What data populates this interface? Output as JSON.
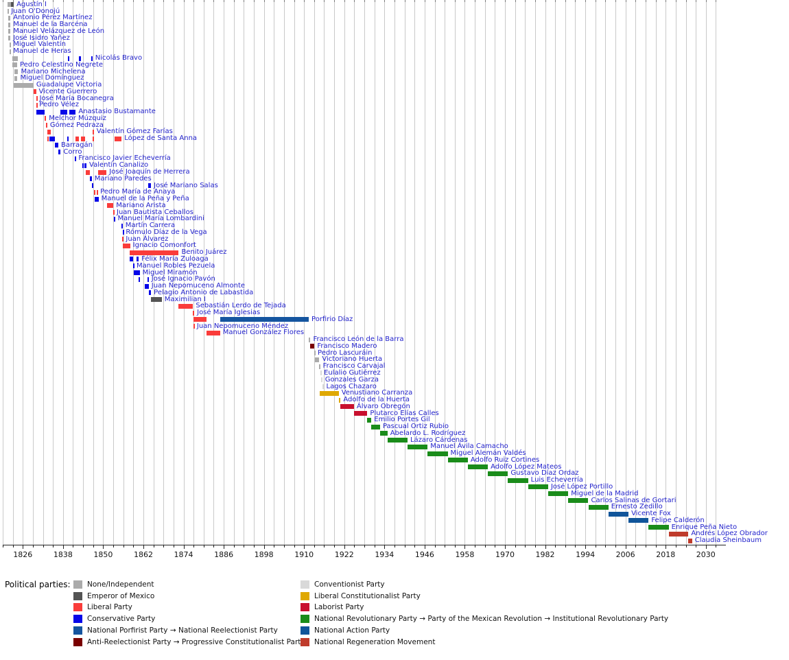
{
  "legend": {
    "title": "Political parties:",
    "columns": [
      [
        "none",
        "emperor",
        "liberal",
        "conservative",
        "porfirist",
        "antireelect"
      ],
      [
        "conventionist",
        "libconst",
        "laborist",
        "pri",
        "pan",
        "morena"
      ]
    ]
  },
  "chart_data": {
    "type": "timeline",
    "x_axis": {
      "range": [
        1820,
        2036
      ],
      "tick_labels": [
        1826,
        1838,
        1850,
        1862,
        1874,
        1886,
        1898,
        1910,
        1922,
        1934,
        1946,
        1958,
        1970,
        1982,
        1994,
        2006,
        2018,
        2030
      ],
      "gridline_interval_years": 3,
      "label_interval_years": 12,
      "grid": true
    },
    "parties": {
      "none": {
        "label": "None/Independent",
        "color": "#ababab"
      },
      "emperor": {
        "label": "Emperor of Mexico",
        "color": "#545454"
      },
      "liberal": {
        "label": "Liberal Party",
        "color": "#fa3c3a"
      },
      "conservative": {
        "label": "Conservative Party",
        "color": "#0707e8"
      },
      "porfirist": {
        "label": "National Porfirist Party → National Reelectionist Party",
        "color": "#15559f"
      },
      "antireelect": {
        "label": "Anti-Reelectionist Party → Progressive Constitutionalist Party",
        "color": "#7a0000"
      },
      "conventionist": {
        "label": "Conventionist Party",
        "color": "#d9d9d9"
      },
      "libconst": {
        "label": "Liberal Constitutionalist Party",
        "color": "#dfa801"
      },
      "laborist": {
        "label": "Laborist Party",
        "color": "#c8102e"
      },
      "pri": {
        "label": "National Revolutionary Party → Party of the Mexican Revolution → Institutional Revolutionary Party",
        "color": "#1a8c1a"
      },
      "pan": {
        "label": "National Action Party",
        "color": "#10559a"
      },
      "morena": {
        "label": "National Regeneration Movement",
        "color": "#bf3b2b"
      }
    },
    "presidents": [
      {
        "name": "Agustín I",
        "segments": [
          [
            1821.4,
            1822.4,
            "none"
          ],
          [
            1822.4,
            1823.3,
            "emperor"
          ]
        ]
      },
      {
        "name": "Juan O'Donojú",
        "segments": [
          [
            1821.4,
            1821.7,
            "none"
          ]
        ]
      },
      {
        "name": "Antonio Pérez Martínez",
        "segments": [
          [
            1821.7,
            1822.3,
            "none"
          ]
        ]
      },
      {
        "name": "Manuel de la Barcéna",
        "segments": [
          [
            1821.7,
            1822.3,
            "none"
          ]
        ]
      },
      {
        "name": "Manuel Velázquez de León",
        "segments": [
          [
            1821.7,
            1822.3,
            "none"
          ]
        ]
      },
      {
        "name": "José Isidro Yañez",
        "segments": [
          [
            1821.7,
            1822.3,
            "none"
          ]
        ]
      },
      {
        "name": "Miguel Valentín",
        "segments": [
          [
            1822.0,
            1822.3,
            "none"
          ]
        ]
      },
      {
        "name": "Manuel de Heras",
        "segments": [
          [
            1822.0,
            1822.3,
            "none"
          ]
        ]
      },
      {
        "name": "Nicolás Bravo",
        "segments": [
          [
            1822.8,
            1824.5,
            "none"
          ],
          [
            1839.5,
            1839.8,
            "conservative"
          ],
          [
            1842.8,
            1843.4,
            "conservative"
          ],
          [
            1846.5,
            1846.8,
            "conservative"
          ]
        ]
      },
      {
        "name": "Pedro Celestino Negrete",
        "segments": [
          [
            1822.8,
            1824.3,
            "none"
          ]
        ]
      },
      {
        "name": "Mariano Michelena",
        "segments": [
          [
            1823.5,
            1824.6,
            "none"
          ]
        ]
      },
      {
        "name": "Miguel Domínguez",
        "segments": [
          [
            1823.5,
            1824.4,
            "none"
          ]
        ]
      },
      {
        "name": "Guadalupe Victoria",
        "segments": [
          [
            1823.3,
            1829.2,
            "none"
          ]
        ]
      },
      {
        "name": "Vicente Guerrero",
        "segments": [
          [
            1829.3,
            1829.95,
            "liberal"
          ]
        ]
      },
      {
        "name": "José María Bocanegra",
        "segments": [
          [
            1829.95,
            1830.15,
            "liberal"
          ]
        ]
      },
      {
        "name": "Pedro Vélez",
        "segments": [
          [
            1829.95,
            1830.1,
            "liberal"
          ]
        ]
      },
      {
        "name": "Anastasio Bustamante",
        "segments": [
          [
            1830.0,
            1832.6,
            "conservative"
          ],
          [
            1837.3,
            1839.2,
            "conservative"
          ],
          [
            1839.8,
            1841.8,
            "conservative"
          ]
        ]
      },
      {
        "name": "Melchor Múzquiz",
        "segments": [
          [
            1832.6,
            1832.95,
            "liberal"
          ]
        ]
      },
      {
        "name": "Gómez Pedraza",
        "segments": [
          [
            1832.95,
            1833.3,
            "liberal"
          ]
        ]
      },
      {
        "name": "Valentín Gómez Farías",
        "segments": [
          [
            1833.3,
            1834.4,
            "liberal"
          ],
          [
            1846.9,
            1847.2,
            "liberal"
          ]
        ]
      },
      {
        "name": "López de Santa Anna",
        "segments": [
          [
            1833.3,
            1833.6,
            "liberal"
          ],
          [
            1834.0,
            1835.5,
            "conservative"
          ],
          [
            1839.2,
            1839.5,
            "conservative"
          ],
          [
            1841.8,
            1842.8,
            "liberal"
          ],
          [
            1843.4,
            1844.6,
            "liberal"
          ],
          [
            1846.9,
            1847.2,
            "liberal"
          ],
          [
            1853.3,
            1855.5,
            "liberal"
          ]
        ]
      },
      {
        "name": "Barragán",
        "segments": [
          [
            1835.6,
            1836.6,
            "conservative"
          ]
        ]
      },
      {
        "name": "Corro",
        "segments": [
          [
            1836.6,
            1837.3,
            "conservative"
          ]
        ]
      },
      {
        "name": "Francisco Javier Echeverría",
        "segments": [
          [
            1841.5,
            1841.8,
            "conservative"
          ]
        ]
      },
      {
        "name": "Valentín Canalizo",
        "segments": [
          [
            1843.8,
            1844.1,
            "conservative"
          ],
          [
            1844.4,
            1845.0,
            "conservative"
          ]
        ]
      },
      {
        "name": "José Joaquín de Herrera",
        "segments": [
          [
            1844.7,
            1845.0,
            "liberal"
          ],
          [
            1845.1,
            1846.0,
            "liberal"
          ],
          [
            1848.5,
            1851.0,
            "liberal"
          ]
        ]
      },
      {
        "name": "Mariano Paredes",
        "segments": [
          [
            1846.0,
            1846.6,
            "conservative"
          ]
        ]
      },
      {
        "name": "José Mariano Salas",
        "segments": [
          [
            1846.6,
            1846.95,
            "conservative"
          ],
          [
            1863.4,
            1864.3,
            "conservative"
          ]
        ]
      },
      {
        "name": "Pedro María de Anaya",
        "segments": [
          [
            1847.2,
            1847.5,
            "liberal"
          ],
          [
            1848.0,
            1848.3,
            "liberal"
          ]
        ]
      },
      {
        "name": "Manuel de la Peña y Peña",
        "segments": [
          [
            1847.5,
            1848.6,
            "conservative"
          ]
        ]
      },
      {
        "name": "Mariano Arista",
        "segments": [
          [
            1851.05,
            1853.05,
            "liberal"
          ]
        ]
      },
      {
        "name": "Juan Bautista Ceballos",
        "segments": [
          [
            1853.05,
            1853.2,
            "liberal"
          ]
        ]
      },
      {
        "name": "Manuel María Lombardini",
        "segments": [
          [
            1853.2,
            1853.5,
            "conservative"
          ]
        ]
      },
      {
        "name": "Martín Carrera",
        "segments": [
          [
            1855.55,
            1855.8,
            "conservative"
          ]
        ]
      },
      {
        "name": "Rómulo Díaz de la Vega",
        "segments": [
          [
            1855.8,
            1855.95,
            "conservative"
          ]
        ]
      },
      {
        "name": "Juan Álvarez",
        "segments": [
          [
            1855.7,
            1855.95,
            "liberal"
          ]
        ]
      },
      {
        "name": "Ignacio Comonfort",
        "segments": [
          [
            1855.9,
            1858.05,
            "liberal"
          ]
        ]
      },
      {
        "name": "Benito Juárez",
        "segments": [
          [
            1858.0,
            1872.55,
            "liberal"
          ]
        ]
      },
      {
        "name": "Félix María Zuloaga",
        "segments": [
          [
            1858.0,
            1858.9,
            "conservative"
          ],
          [
            1859.9,
            1860.6,
            "conservative"
          ]
        ]
      },
      {
        "name": "Manuel Robles Pezuela",
        "segments": [
          [
            1858.9,
            1859.15,
            "conservative"
          ]
        ]
      },
      {
        "name": "Miguel Miramón",
        "segments": [
          [
            1859.1,
            1860.9,
            "conservative"
          ]
        ]
      },
      {
        "name": "José Ignacio Pavón",
        "segments": [
          [
            1860.6,
            1860.85,
            "conservative"
          ],
          [
            1863.3,
            1863.6,
            "conservative"
          ]
        ]
      },
      {
        "name": "Juan Nepomuceno Almonte",
        "segments": [
          [
            1862.4,
            1863.6,
            "conservative"
          ]
        ]
      },
      {
        "name": "Pelagio Antonio de Labastida",
        "segments": [
          [
            1863.6,
            1864.3,
            "conservative"
          ]
        ]
      },
      {
        "name": "Maximilian I",
        "segments": [
          [
            1864.2,
            1867.5,
            "emperor"
          ]
        ]
      },
      {
        "name": "Sebastián Lerdo de Tejada",
        "segments": [
          [
            1872.55,
            1876.85,
            "liberal"
          ]
        ]
      },
      {
        "name": "José María Iglesias",
        "segments": [
          [
            1876.8,
            1877.2,
            "liberal"
          ]
        ]
      },
      {
        "name": "Porfirio Díaz",
        "segments": [
          [
            1876.9,
            1880.9,
            "liberal"
          ],
          [
            1884.9,
            1911.4,
            "porfirist"
          ]
        ]
      },
      {
        "name": "Juan Nepomuceno Méndez",
        "segments": [
          [
            1876.9,
            1877.15,
            "liberal"
          ]
        ]
      },
      {
        "name": "Manuel González Flores",
        "segments": [
          [
            1880.9,
            1884.9,
            "liberal"
          ]
        ]
      },
      {
        "name": "Francisco León de la Barra",
        "segments": [
          [
            1911.4,
            1911.9,
            "none"
          ]
        ]
      },
      {
        "name": "Francisco Madero",
        "segments": [
          [
            1911.9,
            1913.1,
            "antireelect"
          ]
        ]
      },
      {
        "name": "Pedro Lascuráin",
        "segments": [
          [
            1913.1,
            1913.25,
            "none"
          ]
        ]
      },
      {
        "name": "Victoriano Huerta",
        "segments": [
          [
            1913.15,
            1914.55,
            "none"
          ]
        ]
      },
      {
        "name": "Francisco Carvajal",
        "segments": [
          [
            1914.55,
            1914.8,
            "none"
          ]
        ]
      },
      {
        "name": "Eulalio Gutiérrez",
        "segments": [
          [
            1914.85,
            1915.1,
            "conventionist"
          ]
        ]
      },
      {
        "name": "Gonzales Garza",
        "segments": [
          [
            1915.1,
            1915.45,
            "conventionist"
          ]
        ]
      },
      {
        "name": "Lagos Chazaro",
        "segments": [
          [
            1915.45,
            1915.8,
            "conventionist"
          ]
        ]
      },
      {
        "name": "Venustiano Carranza",
        "segments": [
          [
            1914.6,
            1920.35,
            "libconst"
          ]
        ]
      },
      {
        "name": "Adolfo de la Huerta",
        "segments": [
          [
            1920.4,
            1920.9,
            "libconst"
          ]
        ]
      },
      {
        "name": "Álvaro Obregón",
        "segments": [
          [
            1920.9,
            1924.9,
            "laborist"
          ]
        ]
      },
      {
        "name": "Plutarco Elías Calles",
        "segments": [
          [
            1924.9,
            1928.9,
            "laborist"
          ]
        ]
      },
      {
        "name": "Emilio Portes Gil",
        "segments": [
          [
            1928.9,
            1930.1,
            "pri"
          ]
        ]
      },
      {
        "name": "Pascual Ortiz Rubio",
        "segments": [
          [
            1930.1,
            1932.7,
            "pri"
          ]
        ]
      },
      {
        "name": "Abelardo L. Rodríguez",
        "segments": [
          [
            1932.7,
            1934.9,
            "pri"
          ]
        ]
      },
      {
        "name": "Lázaro Cárdenas",
        "segments": [
          [
            1934.9,
            1940.9,
            "pri"
          ]
        ]
      },
      {
        "name": "Manuel Ávila Camacho",
        "segments": [
          [
            1940.9,
            1946.9,
            "pri"
          ]
        ]
      },
      {
        "name": "Miguel Alemán Valdés",
        "segments": [
          [
            1946.9,
            1952.9,
            "pri"
          ]
        ]
      },
      {
        "name": "Adolfo Ruiz Cortines",
        "segments": [
          [
            1952.9,
            1958.9,
            "pri"
          ]
        ]
      },
      {
        "name": "Adolfo López Mateos",
        "segments": [
          [
            1958.9,
            1964.9,
            "pri"
          ]
        ]
      },
      {
        "name": "Gustavo Díaz Ordaz",
        "segments": [
          [
            1964.9,
            1970.9,
            "pri"
          ]
        ]
      },
      {
        "name": "Luis Echeverría",
        "segments": [
          [
            1970.9,
            1976.9,
            "pri"
          ]
        ]
      },
      {
        "name": "José López Portillo",
        "segments": [
          [
            1976.9,
            1982.9,
            "pri"
          ]
        ]
      },
      {
        "name": "Miguel de la Madrid",
        "segments": [
          [
            1982.9,
            1988.9,
            "pri"
          ]
        ]
      },
      {
        "name": "Carlos Salinas de Gortari",
        "segments": [
          [
            1988.9,
            1994.9,
            "pri"
          ]
        ]
      },
      {
        "name": "Ernesto Zedillo",
        "segments": [
          [
            1994.9,
            2000.9,
            "pri"
          ]
        ]
      },
      {
        "name": "Vicente Fox",
        "segments": [
          [
            2000.9,
            2006.9,
            "pan"
          ]
        ]
      },
      {
        "name": "Felipe Calderón",
        "segments": [
          [
            2006.9,
            2012.9,
            "pan"
          ]
        ]
      },
      {
        "name": "Enrique Peña Nieto",
        "segments": [
          [
            2012.9,
            2018.9,
            "pri"
          ]
        ]
      },
      {
        "name": "Andrés López Obrador",
        "segments": [
          [
            2018.9,
            2024.8,
            "morena"
          ]
        ]
      },
      {
        "name": "Claudia Sheinbaum",
        "segments": [
          [
            2024.8,
            2025.9,
            "morena"
          ]
        ]
      }
    ]
  }
}
